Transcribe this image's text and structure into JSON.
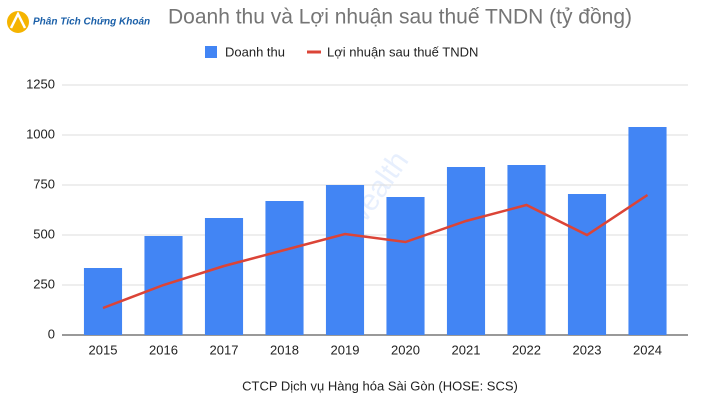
{
  "logo": "Phân Tích Chứng Khoán",
  "watermark": "icwealth",
  "chart_data": {
    "type": "bar",
    "title": "Doanh thu và Lợi nhuận sau thuế TNDN (tỷ đồng)",
    "x_label": "CTCP Dịch vụ Hàng hóa Sài Gòn (HOSE: SCS)",
    "categories": [
      "2015",
      "2016",
      "2017",
      "2018",
      "2019",
      "2020",
      "2021",
      "2022",
      "2023",
      "2024"
    ],
    "series": [
      {
        "name": "Doanh thu",
        "type": "bar",
        "color": "#4285f4",
        "values": [
          335,
          495,
          585,
          670,
          750,
          690,
          840,
          850,
          705,
          1040
        ]
      },
      {
        "name": "Lợi nhuận sau thuế TNDN",
        "type": "line",
        "color": "#db4437",
        "values": [
          135,
          250,
          345,
          425,
          505,
          465,
          570,
          650,
          500,
          700
        ]
      }
    ],
    "ylim": [
      0,
      1250
    ],
    "yticks": [
      0,
      250,
      500,
      750,
      {
        "value": 1000,
        "label": "1000"
      },
      1250
    ],
    "grid": true,
    "legend": "top"
  }
}
